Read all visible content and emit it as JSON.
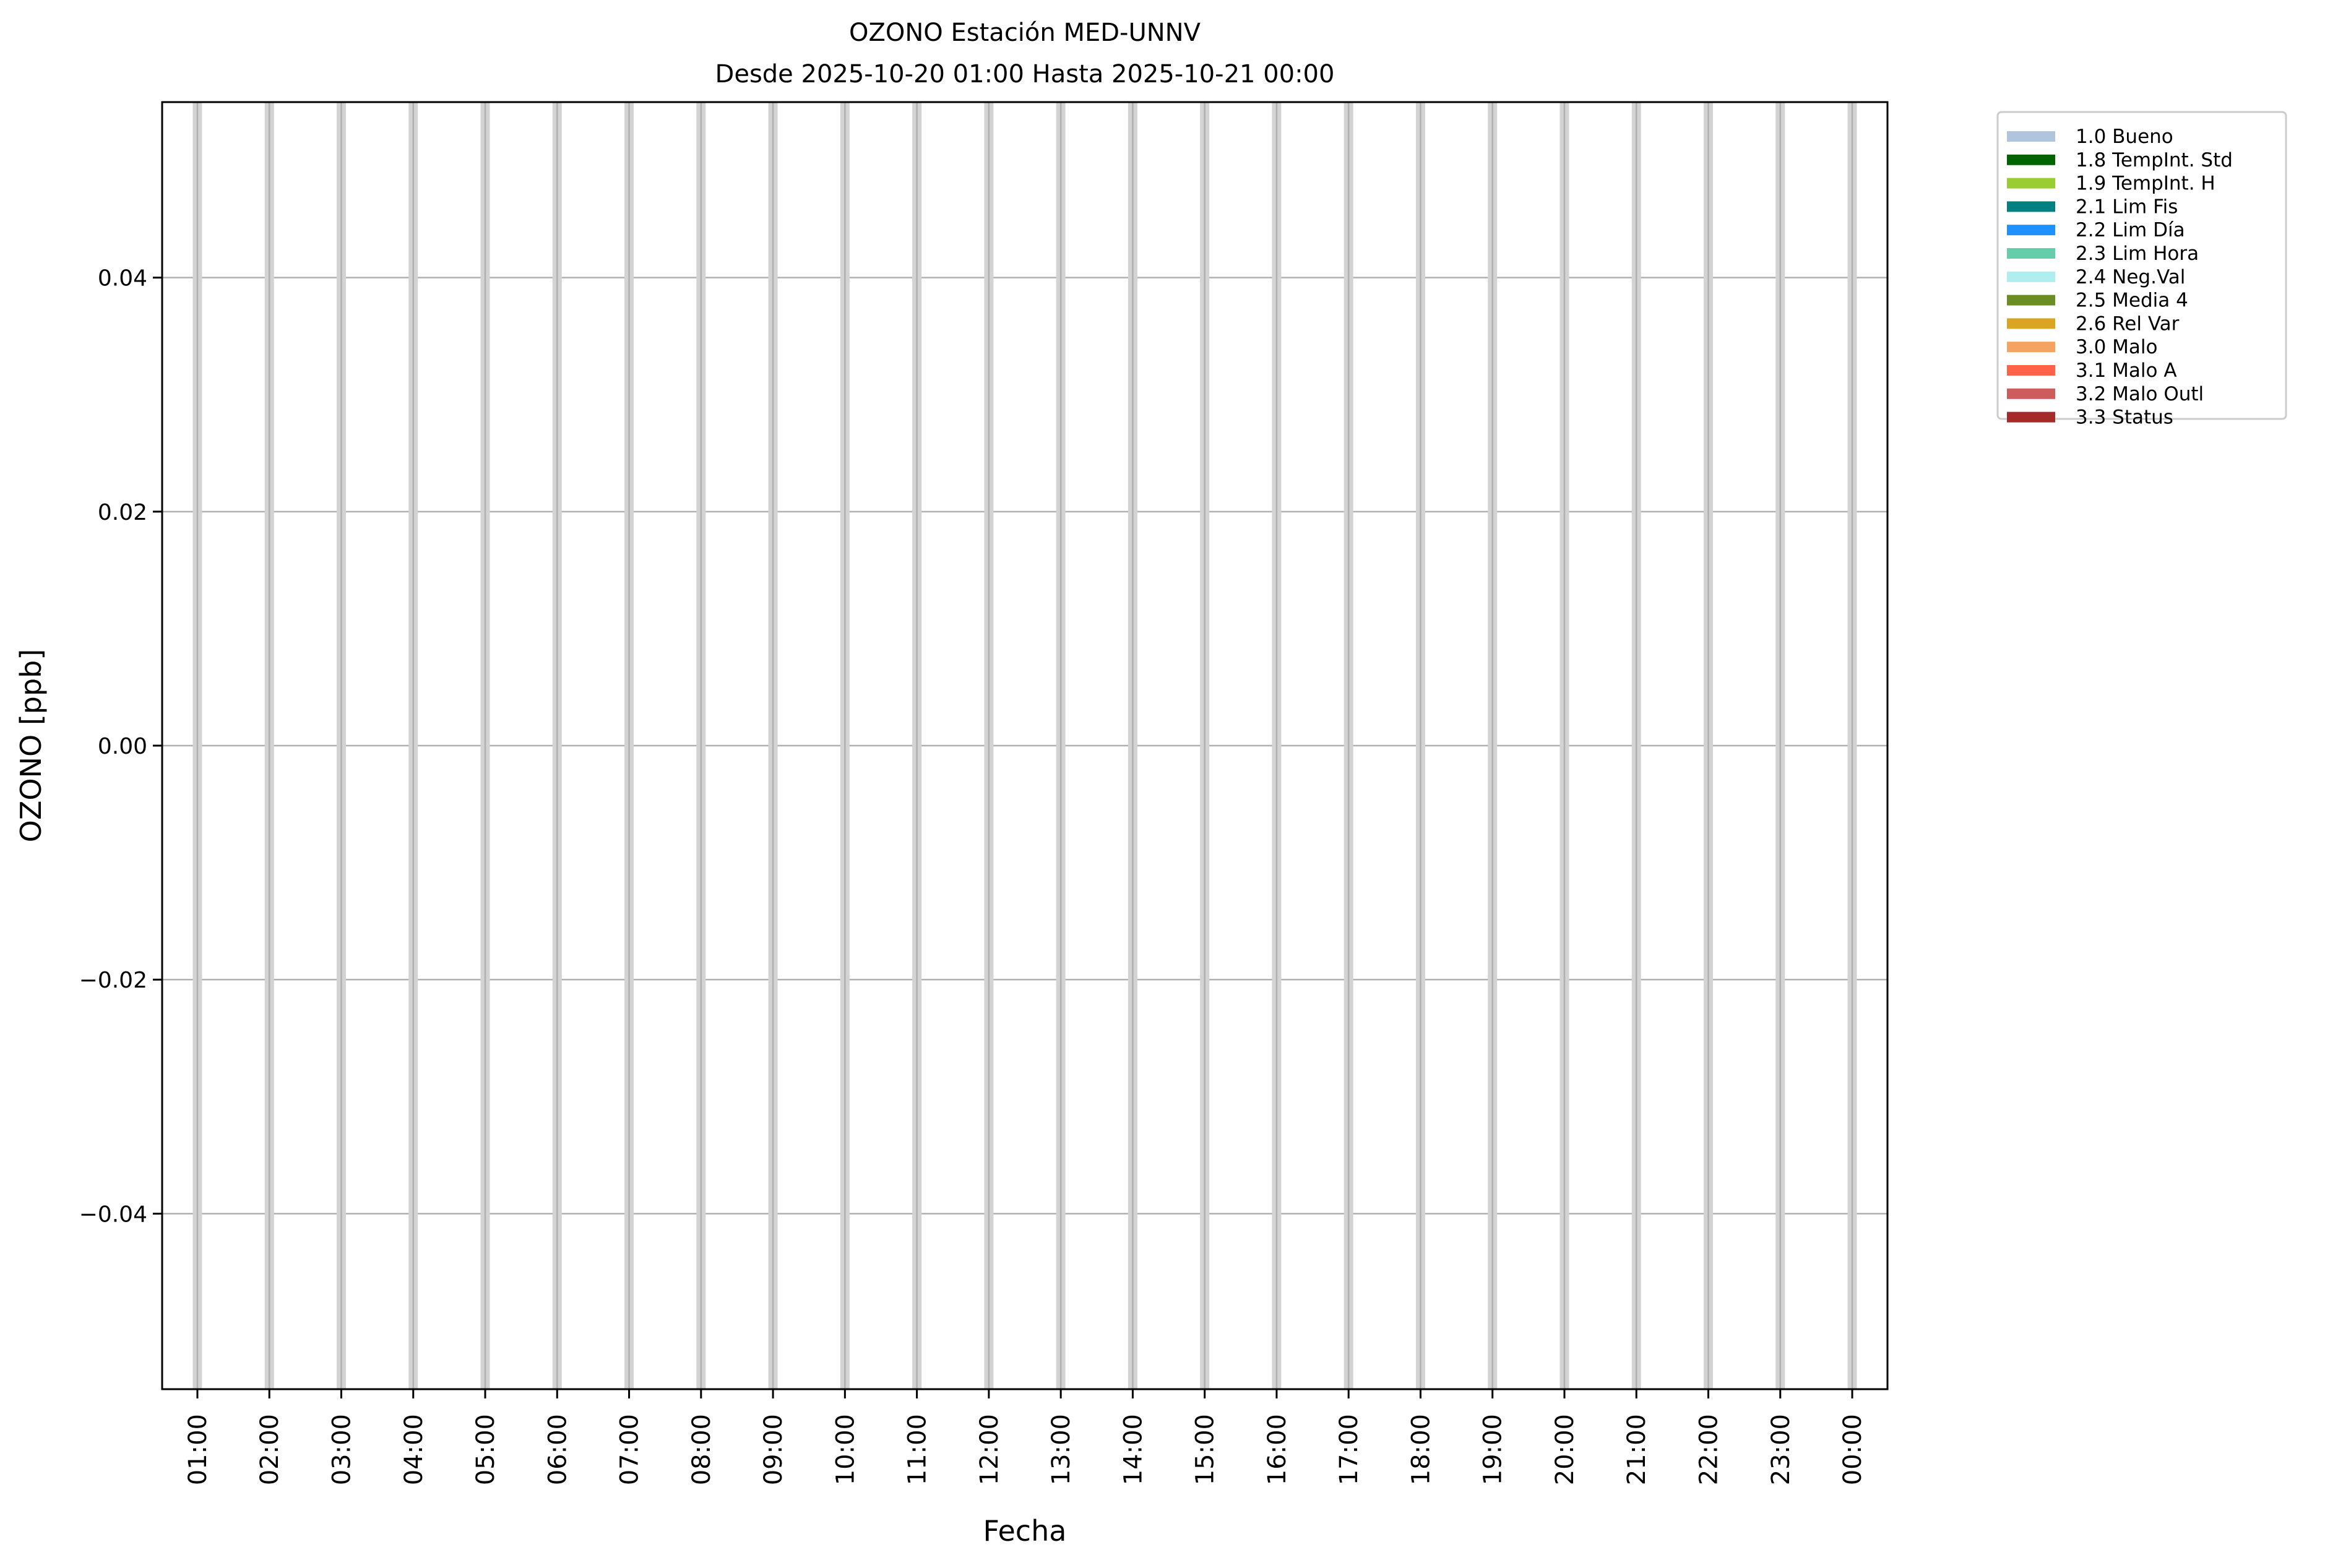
{
  "chart_data": {
    "type": "bar",
    "title": "OZONO Estación MED-UNNV",
    "subtitle": "Desde 2025-10-20 01:00 Hasta 2025-10-21 00:00",
    "xlabel": "Fecha",
    "ylabel": "OZONO [ppb]",
    "categories": [
      "01:00",
      "02:00",
      "03:00",
      "04:00",
      "05:00",
      "06:00",
      "07:00",
      "08:00",
      "09:00",
      "10:00",
      "11:00",
      "12:00",
      "13:00",
      "14:00",
      "15:00",
      "16:00",
      "17:00",
      "18:00",
      "19:00",
      "20:00",
      "21:00",
      "22:00",
      "23:00",
      "00:00"
    ],
    "values": [
      null,
      null,
      null,
      null,
      null,
      null,
      null,
      null,
      null,
      null,
      null,
      null,
      null,
      null,
      null,
      null,
      null,
      null,
      null,
      null,
      null,
      null,
      null,
      null
    ],
    "ylim": [
      -0.055,
      0.055
    ],
    "yticks": [
      "0.04",
      "0.02",
      "0.00",
      "−0.02",
      "−0.04"
    ],
    "ytick_values": [
      0.04,
      0.02,
      0.0,
      -0.02,
      -0.04
    ],
    "grid": true,
    "legend_position": "outside-top-right",
    "legend": [
      {
        "label": "1.0 Bueno",
        "color": "#b0c4de"
      },
      {
        "label": "1.8 TempInt. Std",
        "color": "#006400"
      },
      {
        "label": "1.9 TempInt. H",
        "color": "#9acd32"
      },
      {
        "label": "2.1 Lim Fis",
        "color": "#008080"
      },
      {
        "label": "2.2 Lim Día",
        "color": "#1e90ff"
      },
      {
        "label": "2.3 Lim Hora",
        "color": "#66cdaa"
      },
      {
        "label": "2.4 Neg.Val",
        "color": "#afeeee"
      },
      {
        "label": "2.5 Media 4",
        "color": "#6b8e23"
      },
      {
        "label": "2.6 Rel Var",
        "color": "#daa520"
      },
      {
        "label": "3.0 Malo",
        "color": "#f4a460"
      },
      {
        "label": "3.1 Malo A",
        "color": "#ff6347"
      },
      {
        "label": "3.2 Malo Outl",
        "color": "#cd5c5c"
      },
      {
        "label": "3.3 Status",
        "color": "#a52a2a"
      }
    ]
  }
}
